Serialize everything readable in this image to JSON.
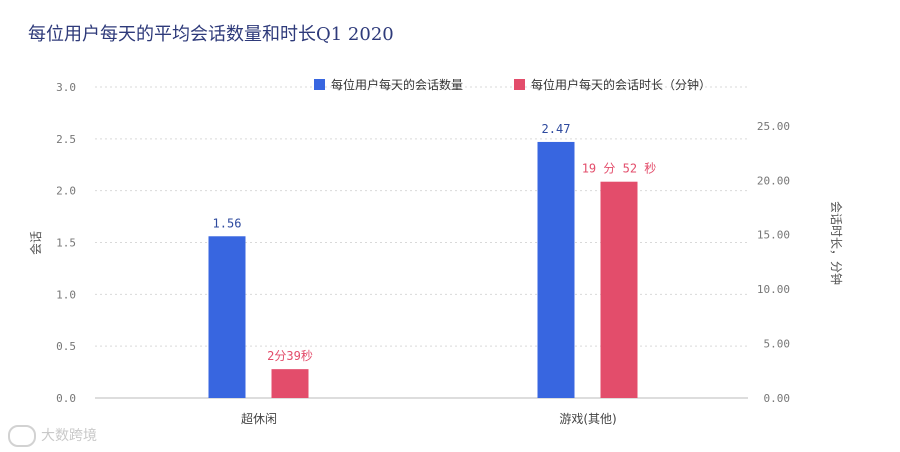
{
  "title": "每位用户每天的平均会话数量和时长Q1 2020",
  "watermark": {
    "text": "大数跨境"
  },
  "colors": {
    "blue": "#3866e0",
    "red": "#e34d6b",
    "grid": "#d9d9d9",
    "axis": "#bbbbbb"
  },
  "chart_data": {
    "type": "bar",
    "categories": [
      "超休闲",
      "游戏(其他)"
    ],
    "series": [
      {
        "name": "每位用户每天的会话数量",
        "values": [
          1.56,
          2.47
        ],
        "labels": [
          "1.56",
          "2.47"
        ],
        "axis": "left",
        "color": "#3866e0"
      },
      {
        "name": "每位用户每天的会话时长（分钟）",
        "values": [
          2.65,
          19.87
        ],
        "labels": [
          "2分39秒",
          "19 分 52 秒"
        ],
        "axis": "right",
        "color": "#e34d6b"
      }
    ],
    "ylabel": "会话",
    "ylabel_right": "会话时长，分钟",
    "ylim": [
      0,
      3.0
    ],
    "ylim_right": [
      0,
      28.57
    ],
    "yticks": [
      "0.0",
      "0.5",
      "1.0",
      "1.5",
      "2.0",
      "2.5",
      "3.0"
    ],
    "yticks_right": [
      "0.00",
      "5.00",
      "10.00",
      "15.00",
      "20.00",
      "25.00"
    ],
    "grid": true,
    "legend": "top-right"
  }
}
